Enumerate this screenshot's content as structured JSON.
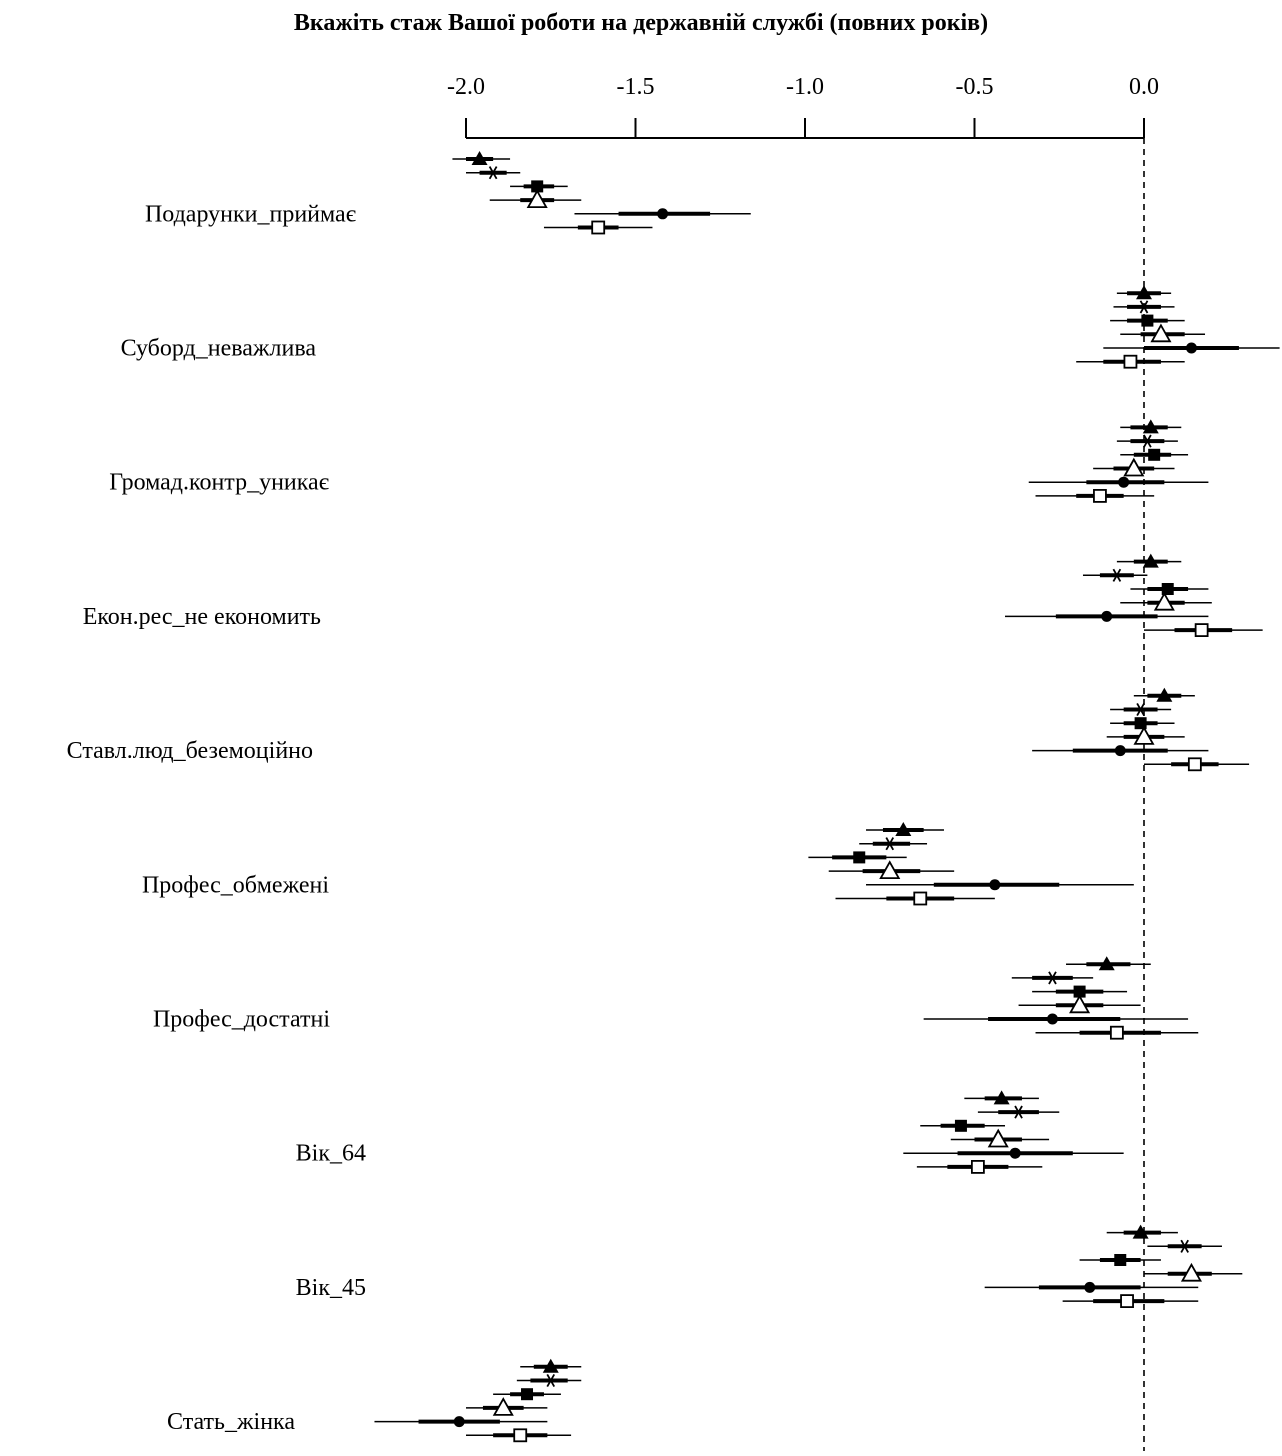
{
  "chart_data": {
    "type": "forest",
    "title": "Вкажіть стаж Вашої роботи на державній службі (повних років)",
    "xlim": [
      -2.0,
      0.4
    ],
    "ticks": [
      -2.0,
      -1.5,
      -1.0,
      -0.5,
      0.0
    ],
    "tick_labels": [
      "-2.0",
      "-1.5",
      "-1.0",
      "-0.5",
      "0.0"
    ],
    "reference_line": 0.0,
    "markers": [
      "filled-triangle",
      "asterisk",
      "filled-square",
      "open-triangle",
      "filled-circle",
      "open-square"
    ],
    "groups": [
      {
        "label": "Подарунки_приймає",
        "estimates": [
          {
            "est": -1.96,
            "lo90": -2.0,
            "hi90": -1.92,
            "lo95": -2.04,
            "hi95": -1.87
          },
          {
            "est": -1.92,
            "lo90": -1.96,
            "hi90": -1.88,
            "lo95": -2.0,
            "hi95": -1.84
          },
          {
            "est": -1.79,
            "lo90": -1.83,
            "hi90": -1.74,
            "lo95": -1.87,
            "hi95": -1.7
          },
          {
            "est": -1.79,
            "lo90": -1.84,
            "hi90": -1.74,
            "lo95": -1.93,
            "hi95": -1.66
          },
          {
            "est": -1.42,
            "lo90": -1.55,
            "hi90": -1.28,
            "lo95": -1.68,
            "hi95": -1.16
          },
          {
            "est": -1.61,
            "lo90": -1.67,
            "hi90": -1.55,
            "lo95": -1.77,
            "hi95": -1.45
          }
        ]
      },
      {
        "label": "Суборд_неважлива",
        "estimates": [
          {
            "est": 0.0,
            "lo90": -0.05,
            "hi90": 0.05,
            "lo95": -0.08,
            "hi95": 0.08
          },
          {
            "est": 0.0,
            "lo90": -0.05,
            "hi90": 0.05,
            "lo95": -0.09,
            "hi95": 0.09
          },
          {
            "est": 0.01,
            "lo90": -0.05,
            "hi90": 0.07,
            "lo95": -0.1,
            "hi95": 0.12
          },
          {
            "est": 0.05,
            "lo90": -0.01,
            "hi90": 0.12,
            "lo95": -0.07,
            "hi95": 0.18
          },
          {
            "est": 0.14,
            "lo90": 0.0,
            "hi90": 0.28,
            "lo95": -0.12,
            "hi95": 0.4
          },
          {
            "est": -0.04,
            "lo90": -0.12,
            "hi90": 0.05,
            "lo95": -0.2,
            "hi95": 0.12
          }
        ]
      },
      {
        "label": "Громад.контр_уникає",
        "estimates": [
          {
            "est": 0.02,
            "lo90": -0.04,
            "hi90": 0.07,
            "lo95": -0.07,
            "hi95": 0.11
          },
          {
            "est": 0.01,
            "lo90": -0.04,
            "hi90": 0.06,
            "lo95": -0.08,
            "hi95": 0.1
          },
          {
            "est": 0.03,
            "lo90": -0.03,
            "hi90": 0.08,
            "lo95": -0.07,
            "hi95": 0.13
          },
          {
            "est": -0.03,
            "lo90": -0.09,
            "hi90": 0.03,
            "lo95": -0.15,
            "hi95": 0.09
          },
          {
            "est": -0.06,
            "lo90": -0.17,
            "hi90": 0.06,
            "lo95": -0.34,
            "hi95": 0.19
          },
          {
            "est": -0.13,
            "lo90": -0.2,
            "hi90": -0.06,
            "lo95": -0.32,
            "hi95": 0.03
          }
        ]
      },
      {
        "label": "Екон.рес_не економить",
        "estimates": [
          {
            "est": 0.02,
            "lo90": -0.03,
            "hi90": 0.07,
            "lo95": -0.08,
            "hi95": 0.11
          },
          {
            "est": -0.08,
            "lo90": -0.13,
            "hi90": -0.03,
            "lo95": -0.18,
            "hi95": 0.01
          },
          {
            "est": 0.07,
            "lo90": 0.01,
            "hi90": 0.13,
            "lo95": -0.04,
            "hi95": 0.19
          },
          {
            "est": 0.06,
            "lo90": 0.01,
            "hi90": 0.12,
            "lo95": -0.07,
            "hi95": 0.2
          },
          {
            "est": -0.11,
            "lo90": -0.26,
            "hi90": 0.04,
            "lo95": -0.41,
            "hi95": 0.19
          },
          {
            "est": 0.17,
            "lo90": 0.09,
            "hi90": 0.26,
            "lo95": 0.0,
            "hi95": 0.35
          }
        ]
      },
      {
        "label": "Ставл.люд_беземоційно",
        "estimates": [
          {
            "est": 0.06,
            "lo90": 0.01,
            "hi90": 0.11,
            "lo95": -0.03,
            "hi95": 0.15
          },
          {
            "est": -0.01,
            "lo90": -0.06,
            "hi90": 0.04,
            "lo95": -0.1,
            "hi95": 0.08
          },
          {
            "est": -0.01,
            "lo90": -0.06,
            "hi90": 0.04,
            "lo95": -0.1,
            "hi95": 0.09
          },
          {
            "est": 0.0,
            "lo90": -0.06,
            "hi90": 0.06,
            "lo95": -0.11,
            "hi95": 0.12
          },
          {
            "est": -0.07,
            "lo90": -0.21,
            "hi90": 0.07,
            "lo95": -0.33,
            "hi95": 0.19
          },
          {
            "est": 0.15,
            "lo90": 0.08,
            "hi90": 0.22,
            "lo95": 0.0,
            "hi95": 0.31
          }
        ]
      },
      {
        "label": "Профес_обмежені",
        "estimates": [
          {
            "est": -0.71,
            "lo90": -0.77,
            "hi90": -0.65,
            "lo95": -0.82,
            "hi95": -0.59
          },
          {
            "est": -0.75,
            "lo90": -0.8,
            "hi90": -0.69,
            "lo95": -0.84,
            "hi95": -0.64
          },
          {
            "est": -0.84,
            "lo90": -0.92,
            "hi90": -0.76,
            "lo95": -0.99,
            "hi95": -0.7
          },
          {
            "est": -0.75,
            "lo90": -0.83,
            "hi90": -0.66,
            "lo95": -0.93,
            "hi95": -0.56
          },
          {
            "est": -0.44,
            "lo90": -0.62,
            "hi90": -0.25,
            "lo95": -0.82,
            "hi95": -0.03
          },
          {
            "est": -0.66,
            "lo90": -0.76,
            "hi90": -0.56,
            "lo95": -0.91,
            "hi95": -0.44
          }
        ]
      },
      {
        "label": "Профес_достатні",
        "estimates": [
          {
            "est": -0.11,
            "lo90": -0.17,
            "hi90": -0.04,
            "lo95": -0.23,
            "hi95": 0.02
          },
          {
            "est": -0.27,
            "lo90": -0.33,
            "hi90": -0.21,
            "lo95": -0.39,
            "hi95": -0.15
          },
          {
            "est": -0.19,
            "lo90": -0.26,
            "hi90": -0.12,
            "lo95": -0.33,
            "hi95": -0.05
          },
          {
            "est": -0.19,
            "lo90": -0.26,
            "hi90": -0.12,
            "lo95": -0.37,
            "hi95": -0.01
          },
          {
            "est": -0.27,
            "lo90": -0.46,
            "hi90": -0.07,
            "lo95": -0.65,
            "hi95": 0.13
          },
          {
            "est": -0.08,
            "lo90": -0.19,
            "hi90": 0.05,
            "lo95": -0.32,
            "hi95": 0.16
          }
        ]
      },
      {
        "label": "Вік_64",
        "estimates": [
          {
            "est": -0.42,
            "lo90": -0.47,
            "hi90": -0.36,
            "lo95": -0.53,
            "hi95": -0.31
          },
          {
            "est": -0.37,
            "lo90": -0.43,
            "hi90": -0.31,
            "lo95": -0.49,
            "hi95": -0.25
          },
          {
            "est": -0.54,
            "lo90": -0.6,
            "hi90": -0.47,
            "lo95": -0.66,
            "hi95": -0.41
          },
          {
            "est": -0.43,
            "lo90": -0.5,
            "hi90": -0.36,
            "lo95": -0.57,
            "hi95": -0.28
          },
          {
            "est": -0.38,
            "lo90": -0.55,
            "hi90": -0.21,
            "lo95": -0.71,
            "hi95": -0.06
          },
          {
            "est": -0.49,
            "lo90": -0.58,
            "hi90": -0.4,
            "lo95": -0.67,
            "hi95": -0.3
          }
        ]
      },
      {
        "label": "Вік_45",
        "estimates": [
          {
            "est": -0.01,
            "lo90": -0.06,
            "hi90": 0.05,
            "lo95": -0.11,
            "hi95": 0.1
          },
          {
            "est": 0.12,
            "lo90": 0.07,
            "hi90": 0.17,
            "lo95": 0.01,
            "hi95": 0.23
          },
          {
            "est": -0.07,
            "lo90": -0.13,
            "hi90": -0.01,
            "lo95": -0.19,
            "hi95": 0.05
          },
          {
            "est": 0.14,
            "lo90": 0.07,
            "hi90": 0.2,
            "lo95": 0.0,
            "hi95": 0.29
          },
          {
            "est": -0.16,
            "lo90": -0.31,
            "hi90": -0.01,
            "lo95": -0.47,
            "hi95": 0.16
          },
          {
            "est": -0.05,
            "lo90": -0.15,
            "hi90": 0.06,
            "lo95": -0.24,
            "hi95": 0.16
          }
        ]
      },
      {
        "label": "Стать_жінка",
        "estimates": [
          {
            "est": -1.75,
            "lo90": -1.8,
            "hi90": -1.7,
            "lo95": -1.84,
            "hi95": -1.66
          },
          {
            "est": -1.75,
            "lo90": -1.81,
            "hi90": -1.7,
            "lo95": -1.85,
            "hi95": -1.66
          },
          {
            "est": -1.82,
            "lo90": -1.87,
            "hi90": -1.77,
            "lo95": -1.92,
            "hi95": -1.72
          },
          {
            "est": -1.89,
            "lo90": -1.95,
            "hi90": -1.83,
            "lo95": -2.0,
            "hi95": -1.76
          },
          {
            "est": -2.02,
            "lo90": -2.14,
            "hi90": -1.9,
            "lo95": -2.27,
            "hi95": -1.76
          },
          {
            "est": -1.84,
            "lo90": -1.92,
            "hi90": -1.76,
            "lo95": -2.0,
            "hi95": -1.69
          }
        ]
      }
    ]
  }
}
